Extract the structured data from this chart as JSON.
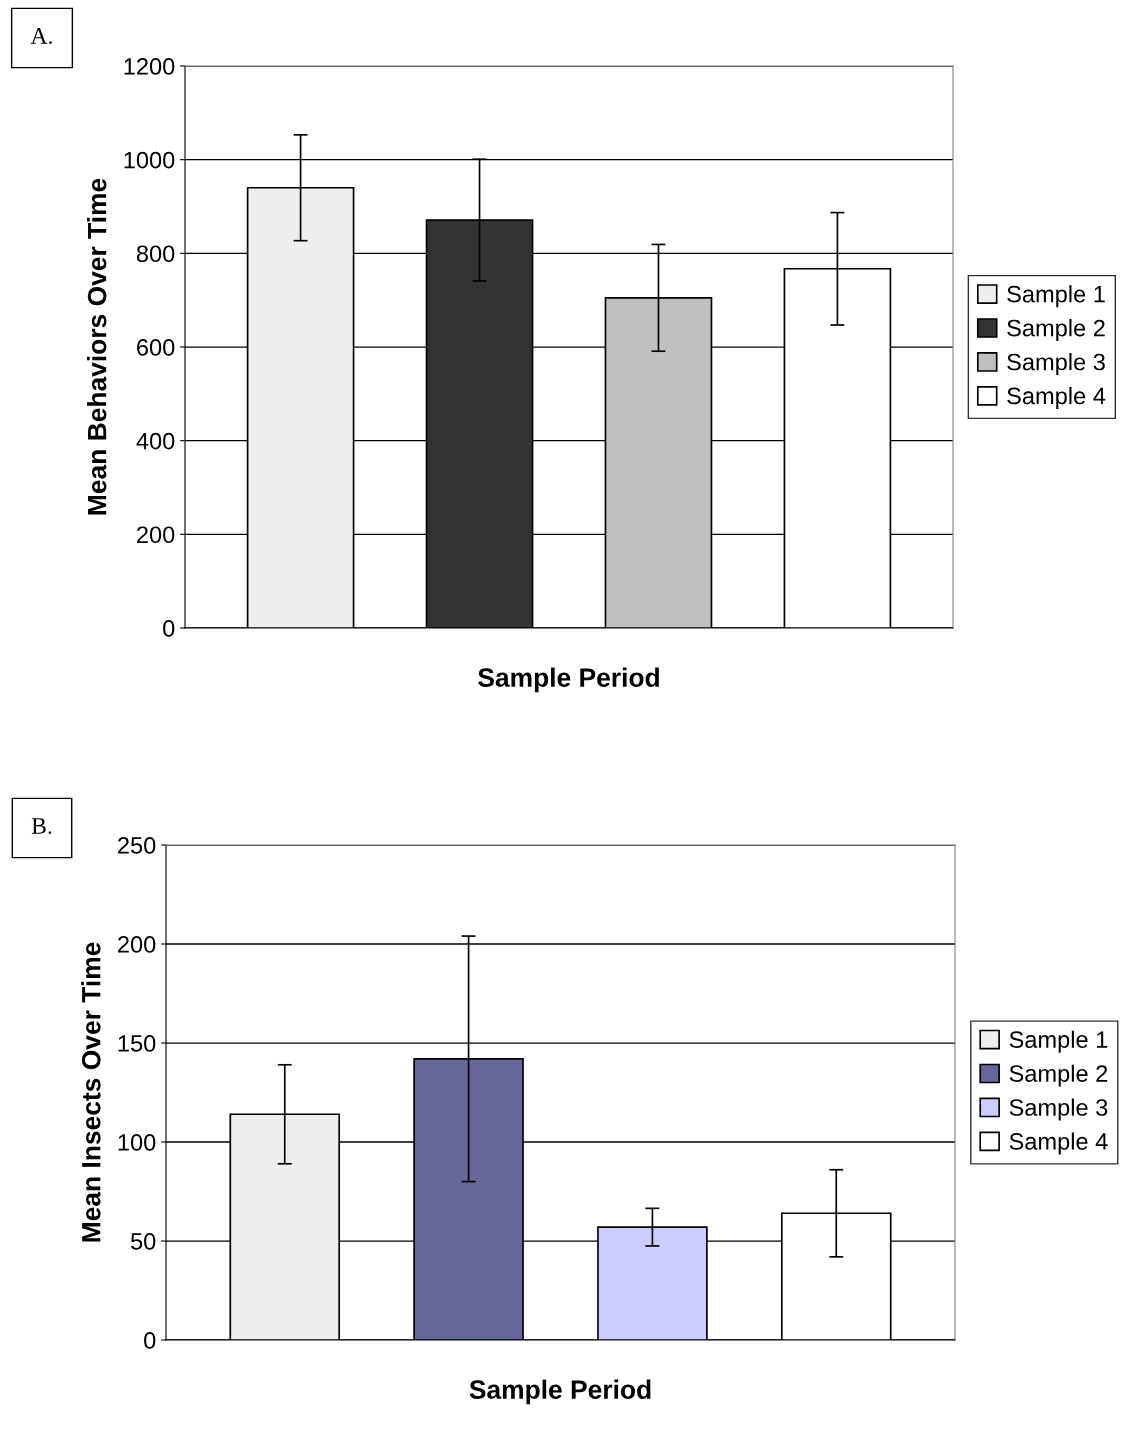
{
  "chart_data": [
    {
      "type": "bar",
      "categories": [
        null
      ],
      "xlabel": "Sample Period",
      "ylabel": "Mean Behaviors Over Time",
      "annotations": [
        "A."
      ],
      "series": [
        {
          "name": "Sample 1",
          "color": "#eeeeee",
          "values": [
            940
          ],
          "errors": [
            113
          ]
        },
        {
          "name": "Sample 2",
          "color": "#333333",
          "values": [
            871
          ],
          "errors": [
            130
          ]
        },
        {
          "name": "Sample 3",
          "color": "#c0c0c0",
          "values": [
            705
          ],
          "errors": [
            114
          ]
        },
        {
          "name": "Sample 4",
          "color": "#ffffff",
          "values": [
            767
          ],
          "errors": [
            120
          ]
        }
      ],
      "ylim": [
        0,
        1200
      ],
      "yticks": [
        0,
        200,
        400,
        600,
        800,
        1000,
        1200
      ],
      "grid": "y",
      "legend": "right"
    },
    {
      "type": "bar",
      "categories": [
        null
      ],
      "xlabel": "Sample Period",
      "ylabel": "Mean Insects Over Time",
      "annotations": [
        "B."
      ],
      "series": [
        {
          "name": "Sample 1",
          "color": "#eeeeee",
          "values": [
            114
          ],
          "errors": [
            25
          ]
        },
        {
          "name": "Sample 2",
          "color": "#666699",
          "values": [
            142
          ],
          "errors": [
            62
          ]
        },
        {
          "name": "Sample 3",
          "color": "#ccccff",
          "values": [
            57
          ],
          "errors": [
            9.5
          ]
        },
        {
          "name": "Sample 4",
          "color": "#ffffff",
          "values": [
            64
          ],
          "errors": [
            22
          ]
        }
      ],
      "ylim": [
        0,
        250
      ],
      "yticks": [
        0,
        50,
        100,
        150,
        200,
        250
      ],
      "grid": "y",
      "legend": "right"
    }
  ]
}
